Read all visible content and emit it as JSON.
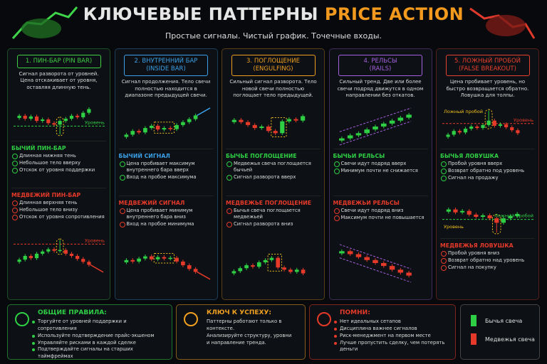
{
  "header": {
    "title_main": "КЛЮЧЕВЫЕ ПАТТЕРНЫ",
    "title_accent": "PRICE ACTION",
    "subtitle": "Простые сигналы. Чистый график. Точечные входы."
  },
  "columns": [
    {
      "title": "1. ПИН-БАР (PIN BAR)",
      "description": "Сигнал разворота от уровней. Цена отскакивает от уровня, оставляя длинную тень.",
      "chart_top_labels": [
        "Уровень"
      ],
      "chart_bottom_labels": [
        "Уровень"
      ],
      "bull": {
        "heading": "БЫЧИЙ ПИН-БАР",
        "items": [
          "Длинная нижняя тень",
          "Небольшое тело вверху",
          "Отскок от уровня поддержки"
        ]
      },
      "bear": {
        "heading": "МЕДВЕЖИЙ ПИН-БАР",
        "items": [
          "Длинная верхняя тень",
          "Небольшое тело внизу",
          "Отскок от уровня сопротивления"
        ]
      }
    },
    {
      "title": "2. ВНУТРЕННИЙ БАР",
      "subtitle": "(INSIDE BAR)",
      "description": "Сигнал продолжения. Тело свечи полностью находится в диапазоне предыдущей свечи.",
      "bull": {
        "heading": "БЫЧИЙ СИГНАЛ",
        "items": [
          "Цена пробивает максимум внутреннего бара вверх",
          "Вход на пробое максимума"
        ]
      },
      "bear": {
        "heading": "МЕДВЕЖИЙ СИГНАЛ",
        "items": [
          "Цена пробивает минимум внутреннего бара вниз",
          "Вход на пробое минимума"
        ]
      }
    },
    {
      "title": "3. ПОГЛОЩЕНИЕ",
      "subtitle": "(ENGULFING)",
      "description": "Сильный сигнал разворота. Тело новой свечи полностью поглощает тело предыдущей.",
      "bull": {
        "heading": "БЫЧЬЕ ПОГЛОЩЕНИЕ",
        "items": [
          "Медвежья свеча поглощается бычьей",
          "Сигнал разворота вверх"
        ]
      },
      "bear": {
        "heading": "МЕДВЕЖЬЕ ПОГЛОЩЕНИЕ",
        "items": [
          "Бычья свеча поглощается медвежьей",
          "Сигнал разворота вниз"
        ]
      }
    },
    {
      "title": "4. РЕЛЬСЫ",
      "subtitle": "(RAILS)",
      "description": "Сильный тренд. Две или более свечи подряд движутся в одном направлении без откатов.",
      "bull": {
        "heading": "БЫЧЬИ РЕЛЬСЫ",
        "items": [
          "Свечи идут подряд вверх",
          "Минимум почти не снижается"
        ]
      },
      "bear": {
        "heading": "МЕДВЕЖЬИ РЕЛЬСЫ",
        "items": [
          "Свечи идут подряд вниз",
          "Максимум почти не повышается"
        ]
      }
    },
    {
      "title": "5. ЛОЖНЫЙ ПРОБОЙ",
      "subtitle": "(FALSE BREAKOUT)",
      "description": "Цена пробивает уровень, но быстро возвращается обратно. Ловушка для толпы.",
      "chart_top_labels": [
        "Ложный пробой",
        "Уровень"
      ],
      "chart_bottom_labels": [
        "Уровень",
        "Ложный пробой"
      ],
      "bull": {
        "heading": "БЫЧЬЯ ЛОВУШКА",
        "items": [
          "Пробой уровня вверх",
          "Возврат обратно под уровень",
          "Сигнал на продажу"
        ]
      },
      "bear": {
        "heading": "МЕДВЕЖЬЯ ЛОВУШКА",
        "items": [
          "Пробой уровня вниз",
          "Возврат обратно над уровень",
          "Сигнал на покупку"
        ]
      }
    }
  ],
  "footer": {
    "rules": {
      "heading": "ОБЩИЕ ПРАВИЛА:",
      "items": [
        "Торгуйте от уровней поддержки и сопротивления",
        "Используйте подтверждение прайс-экшеном",
        "Управляйте рисками в каждой сделке",
        "Подтверждайте сигналы на старших таймфреймах"
      ]
    },
    "key": {
      "heading": "КЛЮЧ К УСПЕХУ:",
      "lines": [
        "Паттерны работают только в контексте.",
        "Анализируйте структуру, уровни",
        "и направление тренда."
      ]
    },
    "remember": {
      "heading": "ПОМНИ:",
      "items": [
        "Нет идеальных сетапов",
        "Дисциплина важнее сигналов",
        "Риск-менеджмент на первом месте",
        "Лучше пропустить сделку, чем потерять деньги"
      ]
    },
    "legend": {
      "bull": "Бычья свеча",
      "bear": "Медвежья свеча"
    }
  }
}
